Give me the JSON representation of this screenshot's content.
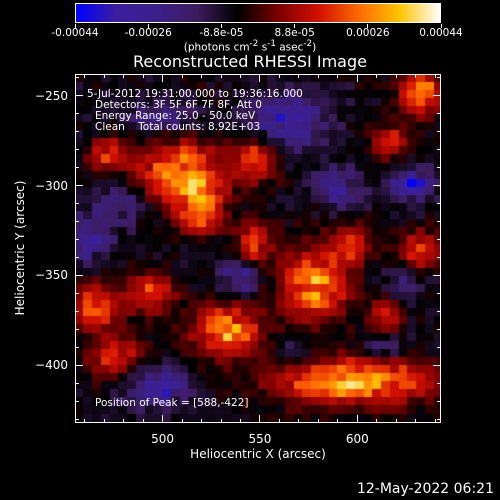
{
  "colorbar": {
    "tick_labels": [
      "-0.00044",
      "-0.00026",
      "-8.8e-05",
      "8.8e-05",
      "0.00026",
      "0.00044"
    ],
    "units_html": "(photons cm<sup>-2</sup> s<sup>-1</sup> asec<sup>-2</sup>)",
    "colors": [
      "#0000ff",
      "#3a1f9e",
      "#3b1f8c",
      "#3c1c5c",
      "#000000",
      "#7a0000",
      "#d21000",
      "#ff6a00",
      "#ffc400",
      "#ffffff"
    ]
  },
  "chart_data": {
    "type": "heatmap",
    "title": "Reconstructed RHESSI Image",
    "xlabel": "Heliocentric X (arcsec)",
    "ylabel": "Heliocentric Y (arcsec)",
    "xlim": [
      455,
      643
    ],
    "ylim": [
      -432,
      -238
    ],
    "x_ticks": [
      500,
      550,
      600
    ],
    "y_ticks": [
      -250,
      -300,
      -350,
      -400
    ],
    "x_tick_labels": [
      "500",
      "550",
      "600"
    ],
    "y_tick_labels": [
      "−250",
      "−300",
      "−350",
      "−400"
    ],
    "colorscale_range": [
      -0.00044,
      0.00044
    ],
    "peak": [
      588,
      -422
    ],
    "hot_regions": [
      {
        "x": 510,
        "y": -293,
        "sigma_x": 16,
        "sigma_y": 12,
        "value": 0.00035
      },
      {
        "x": 520,
        "y": -314,
        "sigma_x": 8,
        "sigma_y": 9,
        "value": 0.0003
      },
      {
        "x": 548,
        "y": -286,
        "sigma_x": 7,
        "sigma_y": 8,
        "value": 0.00026
      },
      {
        "x": 547,
        "y": -332,
        "sigma_x": 6,
        "sigma_y": 8,
        "value": 0.00024
      },
      {
        "x": 578,
        "y": -356,
        "sigma_x": 12,
        "sigma_y": 14,
        "value": 0.00034
      },
      {
        "x": 533,
        "y": -381,
        "sigma_x": 12,
        "sigma_y": 10,
        "value": 0.00034
      },
      {
        "x": 598,
        "y": -409,
        "sigma_x": 28,
        "sigma_y": 9,
        "value": 0.00038
      },
      {
        "x": 597,
        "y": -333,
        "sigma_x": 8,
        "sigma_y": 8,
        "value": 0.00022
      },
      {
        "x": 494,
        "y": -360,
        "sigma_x": 8,
        "sigma_y": 8,
        "value": 0.00026
      },
      {
        "x": 466,
        "y": -368,
        "sigma_x": 9,
        "sigma_y": 9,
        "value": 0.00028
      },
      {
        "x": 476,
        "y": -396,
        "sigma_x": 10,
        "sigma_y": 8,
        "value": 0.00022
      },
      {
        "x": 472,
        "y": -283,
        "sigma_x": 7,
        "sigma_y": 6,
        "value": 0.00024
      },
      {
        "x": 633,
        "y": -249,
        "sigma_x": 7,
        "sigma_y": 8,
        "value": 0.00036
      },
      {
        "x": 617,
        "y": -276,
        "sigma_x": 6,
        "sigma_y": 6,
        "value": 0.00024
      },
      {
        "x": 632,
        "y": -336,
        "sigma_x": 8,
        "sigma_y": 7,
        "value": 0.00024
      },
      {
        "x": 615,
        "y": -372,
        "sigma_x": 6,
        "sigma_y": 8,
        "value": 0.0002
      }
    ],
    "cold_regions": [
      {
        "x": 565,
        "y": -264,
        "sigma_x": 14,
        "sigma_y": 10,
        "value": -0.00024
      },
      {
        "x": 590,
        "y": -302,
        "sigma_x": 9,
        "sigma_y": 8,
        "value": -0.0002
      },
      {
        "x": 628,
        "y": -300,
        "sigma_x": 8,
        "sigma_y": 6,
        "value": -0.00028
      },
      {
        "x": 500,
        "y": -262,
        "sigma_x": 14,
        "sigma_y": 7,
        "value": -0.00016
      },
      {
        "x": 478,
        "y": -310,
        "sigma_x": 9,
        "sigma_y": 9,
        "value": -0.00016
      },
      {
        "x": 464,
        "y": -330,
        "sigma_x": 8,
        "sigma_y": 9,
        "value": -0.0002
      },
      {
        "x": 540,
        "y": -352,
        "sigma_x": 7,
        "sigma_y": 7,
        "value": -0.0002
      },
      {
        "x": 498,
        "y": -412,
        "sigma_x": 12,
        "sigma_y": 8,
        "value": -0.00026
      },
      {
        "x": 613,
        "y": -390,
        "sigma_x": 7,
        "sigma_y": 5,
        "value": -0.00016
      },
      {
        "x": 622,
        "y": -355,
        "sigma_x": 7,
        "sigma_y": 7,
        "value": -0.00014
      },
      {
        "x": 568,
        "y": -392,
        "sigma_x": 8,
        "sigma_y": 6,
        "value": -0.00012
      }
    ]
  },
  "info": {
    "line1": "5-Jul-2012 19:31:00.000 to 19:36:16.000",
    "line2": "Detectors: 3F 5F 6F 7F 8F, Att 0",
    "line3": "Energy Range: 25.0 - 50.0 keV",
    "line4": "Clean    Total counts: 8.92E+03",
    "peak_text": "Position of Peak = [588,-422]"
  },
  "timestamp": "12-May-2022 06:21"
}
